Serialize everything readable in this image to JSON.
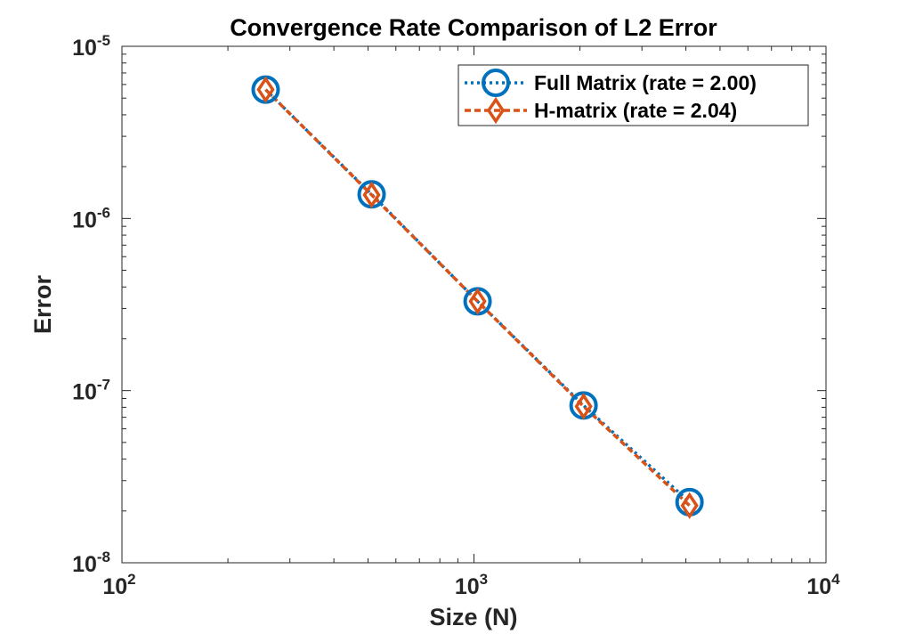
{
  "chart_data": {
    "type": "line",
    "title": "Convergence Rate Comparison of L2 Error",
    "xlabel": "Size (N)",
    "ylabel": "Error",
    "xscale": "log",
    "yscale": "log",
    "xlim": [
      100,
      10000
    ],
    "ylim": [
      1e-08,
      1e-05
    ],
    "grid": false,
    "legend_position": "top-right",
    "x_ticks": [
      {
        "value": 100,
        "base": "10",
        "exp": "2"
      },
      {
        "value": 1000,
        "base": "10",
        "exp": "3"
      },
      {
        "value": 10000,
        "base": "10",
        "exp": "4"
      }
    ],
    "y_ticks": [
      {
        "value": 1e-08,
        "base": "10",
        "exp": "-8"
      },
      {
        "value": 1e-07,
        "base": "10",
        "exp": "-7"
      },
      {
        "value": 1e-06,
        "base": "10",
        "exp": "-6"
      },
      {
        "value": 1e-05,
        "base": "10",
        "exp": "-5"
      }
    ],
    "series": [
      {
        "name": "Full Matrix (rate = 2.00)",
        "color": "#0072BD",
        "marker": "circle",
        "line_style": "dotted",
        "x": [
          256,
          512,
          1024,
          2048,
          4096
        ],
        "y": [
          5.6e-06,
          1.38e-06,
          3.3e-07,
          8.2e-08,
          2.25e-08
        ]
      },
      {
        "name": "H-matrix (rate = 2.04)",
        "color": "#D95319",
        "marker": "diamond",
        "line_style": "dashed",
        "x": [
          256,
          512,
          1024,
          2048,
          4096
        ],
        "y": [
          5.6e-06,
          1.37e-06,
          3.3e-07,
          8.1e-08,
          2.15e-08
        ]
      }
    ]
  }
}
